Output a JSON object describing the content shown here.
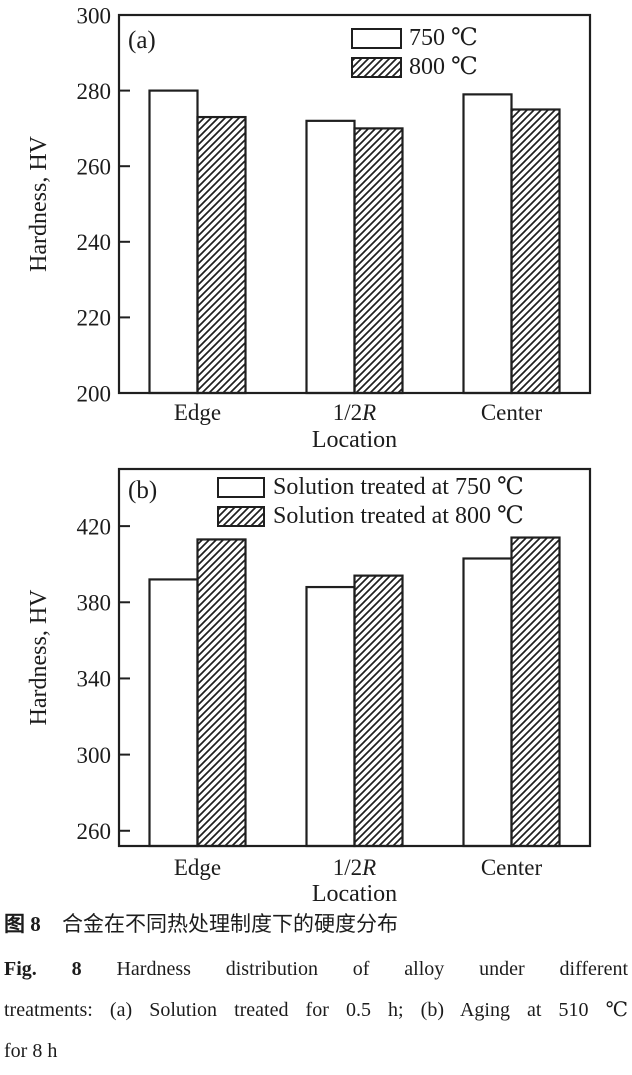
{
  "figure": {
    "caption_cn": {
      "label": "图 8",
      "text": "合金在不同热处理制度下的硬度分布"
    },
    "caption_en": {
      "lines": [
        {
          "bold": "Fig. 8",
          "text": "Hardness distribution of alloy under different"
        },
        {
          "bold": "",
          "text": "treatments: (a) Solution treated for 0.5 h; (b) Aging at 510 ℃"
        },
        {
          "bold": "",
          "text": "for 8 h"
        }
      ]
    }
  },
  "colors": {
    "stroke": "#1f1f1f",
    "background": "#ffffff",
    "bar_fill": "#ffffff"
  },
  "chart_data": [
    {
      "type": "bar",
      "panel_label": "(a)",
      "categories": [
        "Edge",
        "1/2R",
        "Center"
      ],
      "series": [
        {
          "name": "750 ℃",
          "style": "solid",
          "values": [
            280,
            272,
            279
          ]
        },
        {
          "name": "800 ℃",
          "style": "hatched",
          "values": [
            273,
            270,
            275
          ]
        }
      ],
      "xlabel": "Location",
      "ylabel": "Hardness, HV",
      "ylim": [
        200,
        300
      ],
      "yticks": [
        200,
        220,
        240,
        260,
        280,
        300
      ],
      "legend_position": "top-right",
      "grid": false
    },
    {
      "type": "bar",
      "panel_label": "(b)",
      "categories": [
        "Edge",
        "1/2R",
        "Center"
      ],
      "series": [
        {
          "name": "Solution treated at 750 ℃",
          "style": "solid",
          "values": [
            392,
            388,
            403
          ]
        },
        {
          "name": "Solution treated at 800 ℃",
          "style": "hatched",
          "values": [
            413,
            394,
            414
          ]
        }
      ],
      "xlabel": "Location",
      "ylabel": "Hardness, HV",
      "ylim": [
        252,
        450
      ],
      "yticks": [
        260,
        300,
        340,
        380,
        420
      ],
      "legend_position": "top",
      "grid": false
    }
  ]
}
